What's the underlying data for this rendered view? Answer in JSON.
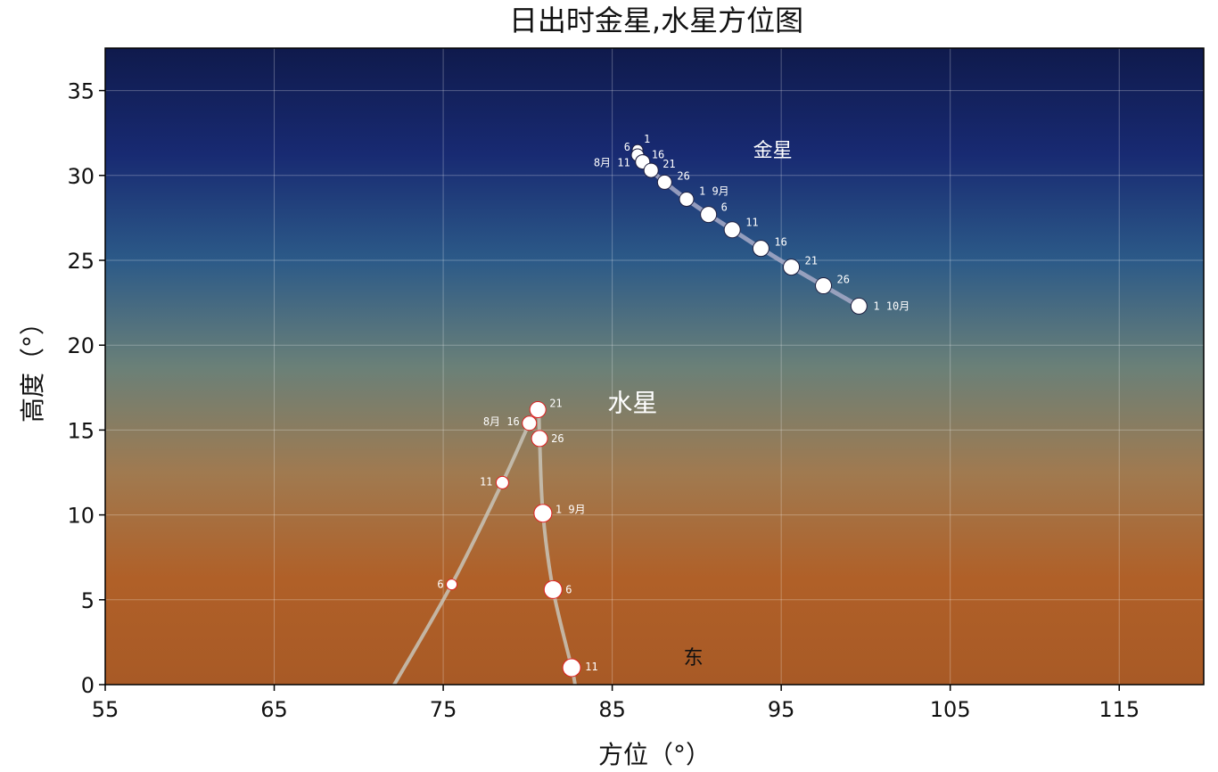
{
  "chart_data": {
    "type": "scatter",
    "title": "日出时金星,水星方位图",
    "xlabel": "方位（°）",
    "ylabel": "高度（°）",
    "xlim": [
      55,
      120
    ],
    "ylim": [
      0,
      37.5
    ],
    "xticks": [
      55,
      65,
      75,
      85,
      95,
      105,
      115
    ],
    "yticks": [
      0,
      5,
      10,
      15,
      20,
      25,
      30,
      35
    ],
    "grid": true,
    "background": {
      "type": "gradient",
      "colors": [
        "#0f1a4c",
        "#182a72",
        "#2c5a88",
        "#6a8078",
        "#a07a50",
        "#b06028",
        "#a85a26"
      ]
    },
    "annotations": [
      {
        "text": "东",
        "x": 89.8,
        "y": 1.2
      }
    ],
    "series": [
      {
        "name": "金星",
        "name_pos": [
          94.5,
          31.1
        ],
        "line_color": "#a8acc8",
        "marker_fill": "#ffffff",
        "marker_stroke": "#202040",
        "points": [
          {
            "label": "1",
            "x": 86.5,
            "y": 31.5,
            "r": 6
          },
          {
            "label": "6",
            "x": 86.5,
            "y": 31.2,
            "r": 7
          },
          {
            "label": "8月 11",
            "x": 86.8,
            "y": 30.8,
            "r": 8
          },
          {
            "label": "16",
            "x": 86.8,
            "y": 30.8,
            "r": 8
          },
          {
            "label": "21",
            "x": 87.3,
            "y": 30.3,
            "r": 8
          },
          {
            "label": "26",
            "x": 88.1,
            "y": 29.6,
            "r": 8
          },
          {
            "label": "1  9月",
            "x": 89.4,
            "y": 28.6,
            "r": 8
          },
          {
            "label": "6",
            "x": 90.7,
            "y": 27.7,
            "r": 9
          },
          {
            "label": "11",
            "x": 92.1,
            "y": 26.8,
            "r": 9
          },
          {
            "label": "16",
            "x": 93.8,
            "y": 25.7,
            "r": 9
          },
          {
            "label": "21",
            "x": 95.6,
            "y": 24.6,
            "r": 9
          },
          {
            "label": "26",
            "x": 97.5,
            "y": 23.5,
            "r": 9
          },
          {
            "label": "1 10月",
            "x": 99.6,
            "y": 22.3,
            "r": 9
          }
        ]
      },
      {
        "name": "水星",
        "name_pos": [
          86.2,
          16.1
        ],
        "line_color": "#c8c4b8",
        "marker_fill": "#ffffff",
        "marker_stroke": "#e02020",
        "points": [
          {
            "label": "6",
            "x": 75.5,
            "y": 5.9,
            "r": 6
          },
          {
            "label": "11",
            "x": 78.5,
            "y": 11.9,
            "r": 7
          },
          {
            "label": "8月 16",
            "x": 80.1,
            "y": 15.4,
            "r": 8
          },
          {
            "label": "21",
            "x": 80.6,
            "y": 16.2,
            "r": 9
          },
          {
            "label": "26",
            "x": 80.7,
            "y": 14.5,
            "r": 9
          },
          {
            "label": "1  9月",
            "x": 80.9,
            "y": 10.1,
            "r": 10
          },
          {
            "label": "6",
            "x": 81.5,
            "y": 5.6,
            "r": 10
          },
          {
            "label": "11",
            "x": 82.6,
            "y": 1.0,
            "r": 10
          }
        ],
        "path_extension": [
          {
            "x": 72.1,
            "y": 0
          },
          {
            "x": 82.8,
            "y": 0
          }
        ]
      }
    ]
  }
}
